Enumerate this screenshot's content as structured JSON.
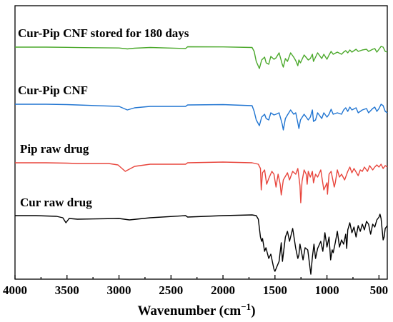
{
  "chart_data": {
    "type": "line",
    "xlabel_main": "Wavenumber (cm",
    "xlabel_sup": "−1",
    "xlabel_close": ")",
    "xlim": [
      4000,
      420
    ],
    "x_ticks": [
      4000,
      3500,
      3000,
      2500,
      2000,
      1500,
      1000,
      500
    ],
    "y_axis": "none (stacked offset spectra, no y ticks)",
    "grid": false,
    "series": [
      {
        "name": "Cur-Pip CNF stored for 180 days",
        "color": "#4aa82a",
        "baseline": 0.0,
        "points": [
          [
            4000,
            0
          ],
          [
            3700,
            0
          ],
          [
            3500,
            0.3
          ],
          [
            3400,
            0.6
          ],
          [
            3000,
            1.2
          ],
          [
            2920,
            2.5
          ],
          [
            2850,
            1.5
          ],
          [
            2700,
            0.5
          ],
          [
            2360,
            2
          ],
          [
            2340,
            -0.5
          ],
          [
            2000,
            -0.3
          ],
          [
            1720,
            0.5
          ],
          [
            1700,
            6
          ],
          [
            1680,
            20
          ],
          [
            1650,
            30
          ],
          [
            1628,
            18
          ],
          [
            1600,
            14
          ],
          [
            1585,
            22
          ],
          [
            1560,
            24
          ],
          [
            1540,
            13
          ],
          [
            1510,
            17
          ],
          [
            1490,
            15
          ],
          [
            1460,
            8
          ],
          [
            1430,
            24
          ],
          [
            1420,
            28
          ],
          [
            1400,
            16
          ],
          [
            1380,
            20
          ],
          [
            1350,
            8
          ],
          [
            1320,
            14
          ],
          [
            1300,
            19
          ],
          [
            1280,
            26
          ],
          [
            1270,
            18
          ],
          [
            1255,
            22
          ],
          [
            1220,
            11
          ],
          [
            1180,
            18
          ],
          [
            1160,
            16
          ],
          [
            1140,
            10
          ],
          [
            1130,
            20
          ],
          [
            1110,
            14
          ],
          [
            1090,
            8
          ],
          [
            1070,
            12
          ],
          [
            1050,
            16
          ],
          [
            1030,
            10
          ],
          [
            1000,
            17
          ],
          [
            980,
            11
          ],
          [
            960,
            6
          ],
          [
            940,
            10
          ],
          [
            900,
            7
          ],
          [
            860,
            10
          ],
          [
            840,
            7
          ],
          [
            820,
            5
          ],
          [
            800,
            8
          ],
          [
            780,
            4
          ],
          [
            760,
            7
          ],
          [
            720,
            3
          ],
          [
            700,
            6
          ],
          [
            660,
            4
          ],
          [
            620,
            3
          ],
          [
            600,
            6
          ],
          [
            560,
            3
          ],
          [
            540,
            2
          ],
          [
            520,
            7
          ],
          [
            500,
            3
          ],
          [
            480,
            -1
          ],
          [
            460,
            0
          ],
          [
            440,
            6
          ],
          [
            420,
            7
          ]
        ]
      },
      {
        "name": "Cur-Pip CNF",
        "color": "#1f74d1",
        "baseline": 0.0,
        "points": [
          [
            4000,
            0
          ],
          [
            3700,
            0
          ],
          [
            3500,
            0.5
          ],
          [
            3400,
            1
          ],
          [
            3000,
            3
          ],
          [
            2920,
            8
          ],
          [
            2850,
            5
          ],
          [
            2700,
            3
          ],
          [
            2360,
            3
          ],
          [
            2340,
            1
          ],
          [
            2000,
            0.5
          ],
          [
            1720,
            2
          ],
          [
            1700,
            10
          ],
          [
            1680,
            22
          ],
          [
            1650,
            30
          ],
          [
            1628,
            18
          ],
          [
            1600,
            14
          ],
          [
            1585,
            20
          ],
          [
            1560,
            22
          ],
          [
            1540,
            12
          ],
          [
            1510,
            15
          ],
          [
            1490,
            14
          ],
          [
            1460,
            12
          ],
          [
            1430,
            28
          ],
          [
            1420,
            36
          ],
          [
            1400,
            20
          ],
          [
            1380,
            15
          ],
          [
            1350,
            8
          ],
          [
            1320,
            14
          ],
          [
            1300,
            12
          ],
          [
            1280,
            26
          ],
          [
            1270,
            34
          ],
          [
            1255,
            22
          ],
          [
            1220,
            14
          ],
          [
            1180,
            22
          ],
          [
            1160,
            18
          ],
          [
            1140,
            8
          ],
          [
            1130,
            24
          ],
          [
            1110,
            22
          ],
          [
            1090,
            12
          ],
          [
            1070,
            16
          ],
          [
            1050,
            20
          ],
          [
            1030,
            12
          ],
          [
            1000,
            18
          ],
          [
            980,
            14
          ],
          [
            960,
            7
          ],
          [
            940,
            14
          ],
          [
            900,
            12
          ],
          [
            860,
            14
          ],
          [
            840,
            8
          ],
          [
            820,
            5
          ],
          [
            800,
            10
          ],
          [
            780,
            4
          ],
          [
            760,
            8
          ],
          [
            720,
            5
          ],
          [
            700,
            12
          ],
          [
            660,
            8
          ],
          [
            620,
            6
          ],
          [
            600,
            12
          ],
          [
            560,
            6
          ],
          [
            540,
            4
          ],
          [
            520,
            10
          ],
          [
            500,
            6
          ],
          [
            480,
            0
          ],
          [
            460,
            2
          ],
          [
            440,
            10
          ],
          [
            420,
            12
          ]
        ]
      },
      {
        "name": "Pip raw drug",
        "color": "#e8453c",
        "baseline": 0.0,
        "points": [
          [
            4000,
            0
          ],
          [
            3700,
            0
          ],
          [
            3500,
            0.5
          ],
          [
            3400,
            1
          ],
          [
            3100,
            1
          ],
          [
            3010,
            3
          ],
          [
            2940,
            12
          ],
          [
            2850,
            5
          ],
          [
            2700,
            2
          ],
          [
            2360,
            2
          ],
          [
            2340,
            0
          ],
          [
            2000,
            -1
          ],
          [
            1720,
            0
          ],
          [
            1660,
            2
          ],
          [
            1640,
            8
          ],
          [
            1632,
            38
          ],
          [
            1620,
            14
          ],
          [
            1600,
            10
          ],
          [
            1580,
            30
          ],
          [
            1560,
            22
          ],
          [
            1530,
            12
          ],
          [
            1510,
            16
          ],
          [
            1490,
            34
          ],
          [
            1470,
            16
          ],
          [
            1450,
            30
          ],
          [
            1440,
            45
          ],
          [
            1420,
            24
          ],
          [
            1380,
            14
          ],
          [
            1360,
            24
          ],
          [
            1330,
            12
          ],
          [
            1300,
            16
          ],
          [
            1280,
            8
          ],
          [
            1260,
            32
          ],
          [
            1252,
            56
          ],
          [
            1240,
            26
          ],
          [
            1220,
            10
          ],
          [
            1200,
            16
          ],
          [
            1190,
            30
          ],
          [
            1180,
            12
          ],
          [
            1160,
            20
          ],
          [
            1140,
            12
          ],
          [
            1130,
            28
          ],
          [
            1110,
            16
          ],
          [
            1090,
            20
          ],
          [
            1060,
            10
          ],
          [
            1030,
            38
          ],
          [
            1000,
            28
          ],
          [
            995,
            44
          ],
          [
            980,
            16
          ],
          [
            960,
            12
          ],
          [
            930,
            34
          ],
          [
            920,
            28
          ],
          [
            900,
            10
          ],
          [
            880,
            20
          ],
          [
            860,
            16
          ],
          [
            830,
            24
          ],
          [
            800,
            12
          ],
          [
            780,
            6
          ],
          [
            760,
            14
          ],
          [
            740,
            8
          ],
          [
            700,
            18
          ],
          [
            680,
            10
          ],
          [
            660,
            12
          ],
          [
            640,
            6
          ],
          [
            610,
            12
          ],
          [
            590,
            4
          ],
          [
            560,
            10
          ],
          [
            540,
            6
          ],
          [
            520,
            3
          ],
          [
            500,
            6
          ],
          [
            480,
            2
          ],
          [
            460,
            8
          ],
          [
            440,
            4
          ],
          [
            420,
            6
          ]
        ]
      },
      {
        "name": "Cur raw drug",
        "color": "#000000",
        "baseline": 0.0,
        "points": [
          [
            4000,
            0
          ],
          [
            3800,
            0
          ],
          [
            3600,
            1
          ],
          [
            3540,
            3
          ],
          [
            3510,
            10
          ],
          [
            3480,
            4
          ],
          [
            3400,
            5
          ],
          [
            3000,
            4
          ],
          [
            2900,
            6
          ],
          [
            2700,
            3
          ],
          [
            2360,
            0
          ],
          [
            2340,
            2
          ],
          [
            2000,
            0
          ],
          [
            1720,
            -1
          ],
          [
            1680,
            0
          ],
          [
            1660,
            5
          ],
          [
            1640,
            30
          ],
          [
            1628,
            36
          ],
          [
            1620,
            32
          ],
          [
            1600,
            50
          ],
          [
            1587,
            45
          ],
          [
            1560,
            60
          ],
          [
            1540,
            54
          ],
          [
            1510,
            75
          ],
          [
            1500,
            78
          ],
          [
            1460,
            64
          ],
          [
            1440,
            38
          ],
          [
            1428,
            64
          ],
          [
            1400,
            30
          ],
          [
            1380,
            22
          ],
          [
            1360,
            36
          ],
          [
            1330,
            18
          ],
          [
            1300,
            46
          ],
          [
            1280,
            60
          ],
          [
            1270,
            55
          ],
          [
            1260,
            40
          ],
          [
            1230,
            62
          ],
          [
            1210,
            45
          ],
          [
            1185,
            48
          ],
          [
            1155,
            82
          ],
          [
            1140,
            58
          ],
          [
            1125,
            40
          ],
          [
            1110,
            60
          ],
          [
            1090,
            46
          ],
          [
            1060,
            36
          ],
          [
            1040,
            50
          ],
          [
            1020,
            24
          ],
          [
            1000,
            44
          ],
          [
            980,
            30
          ],
          [
            965,
            62
          ],
          [
            950,
            48
          ],
          [
            940,
            52
          ],
          [
            920,
            38
          ],
          [
            900,
            22
          ],
          [
            880,
            44
          ],
          [
            860,
            34
          ],
          [
            840,
            40
          ],
          [
            820,
            26
          ],
          [
            810,
            46
          ],
          [
            800,
            20
          ],
          [
            780,
            10
          ],
          [
            760,
            24
          ],
          [
            740,
            16
          ],
          [
            720,
            30
          ],
          [
            700,
            14
          ],
          [
            680,
            22
          ],
          [
            660,
            12
          ],
          [
            640,
            20
          ],
          [
            620,
            8
          ],
          [
            600,
            12
          ],
          [
            580,
            26
          ],
          [
            560,
            12
          ],
          [
            540,
            16
          ],
          [
            520,
            6
          ],
          [
            500,
            2
          ],
          [
            490,
            -2
          ],
          [
            480,
            4
          ],
          [
            460,
            34
          ],
          [
            450,
            30
          ],
          [
            440,
            18
          ],
          [
            420,
            14
          ]
        ]
      }
    ]
  }
}
